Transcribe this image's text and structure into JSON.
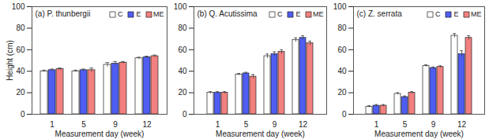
{
  "chart_data": [
    {
      "type": "bar",
      "title": "(a) P. thunbergii",
      "x_label": "Measurement day (week)",
      "y_label": "Height (cm)",
      "categories": [
        "1",
        "5",
        "9",
        "12"
      ],
      "series": [
        {
          "name": "C",
          "color": "#ffffff",
          "values": [
            40,
            40,
            46,
            52
          ],
          "errors": [
            1,
            1,
            2,
            1
          ]
        },
        {
          "name": "E",
          "color": "#4f5df2",
          "values": [
            41,
            41,
            47,
            53
          ],
          "errors": [
            1,
            1,
            2,
            1
          ]
        },
        {
          "name": "ME",
          "color": "#f28080",
          "values": [
            42,
            41,
            48,
            54
          ],
          "errors": [
            1,
            2,
            1,
            1
          ]
        }
      ],
      "ylim": [
        0,
        100
      ],
      "yticks": [
        0,
        20,
        40,
        60,
        80,
        100
      ],
      "grid": false,
      "legend": "top-right"
    },
    {
      "type": "bar",
      "title": "(b) Q. Acutissima",
      "x_label": "Measurement day (week)",
      "categories": [
        "1",
        "5",
        "9",
        "12"
      ],
      "series": [
        {
          "name": "C",
          "color": "#ffffff",
          "values": [
            20,
            37,
            54,
            69
          ],
          "errors": [
            1,
            1,
            2,
            2
          ]
        },
        {
          "name": "E",
          "color": "#4f5df2",
          "values": [
            20,
            38,
            56,
            71
          ],
          "errors": [
            1,
            1,
            2,
            2
          ]
        },
        {
          "name": "ME",
          "color": "#f28080",
          "values": [
            20,
            35,
            58,
            66
          ],
          "errors": [
            1,
            2,
            2,
            2
          ]
        }
      ],
      "ylim": [
        0,
        100
      ],
      "yticks": [
        0,
        20,
        40,
        60,
        80,
        100
      ],
      "grid": false,
      "legend": "top-right"
    },
    {
      "type": "bar",
      "title": "(c) Z. serrata",
      "x_label": "Measurement day (week)",
      "categories": [
        "1",
        "5",
        "9",
        "12"
      ],
      "series": [
        {
          "name": "C",
          "color": "#ffffff",
          "values": [
            7,
            19,
            45,
            73
          ],
          "errors": [
            1,
            1,
            1,
            2
          ]
        },
        {
          "name": "E",
          "color": "#4f5df2",
          "values": [
            8,
            16,
            43,
            56
          ],
          "errors": [
            1,
            1,
            1,
            3
          ]
        },
        {
          "name": "ME",
          "color": "#f28080",
          "values": [
            8,
            20,
            44,
            71
          ],
          "errors": [
            1,
            1,
            1,
            2
          ]
        }
      ],
      "ylim": [
        0,
        100
      ],
      "yticks": [
        0,
        20,
        40,
        60,
        80,
        100
      ],
      "grid": false,
      "legend": "top-right"
    }
  ]
}
